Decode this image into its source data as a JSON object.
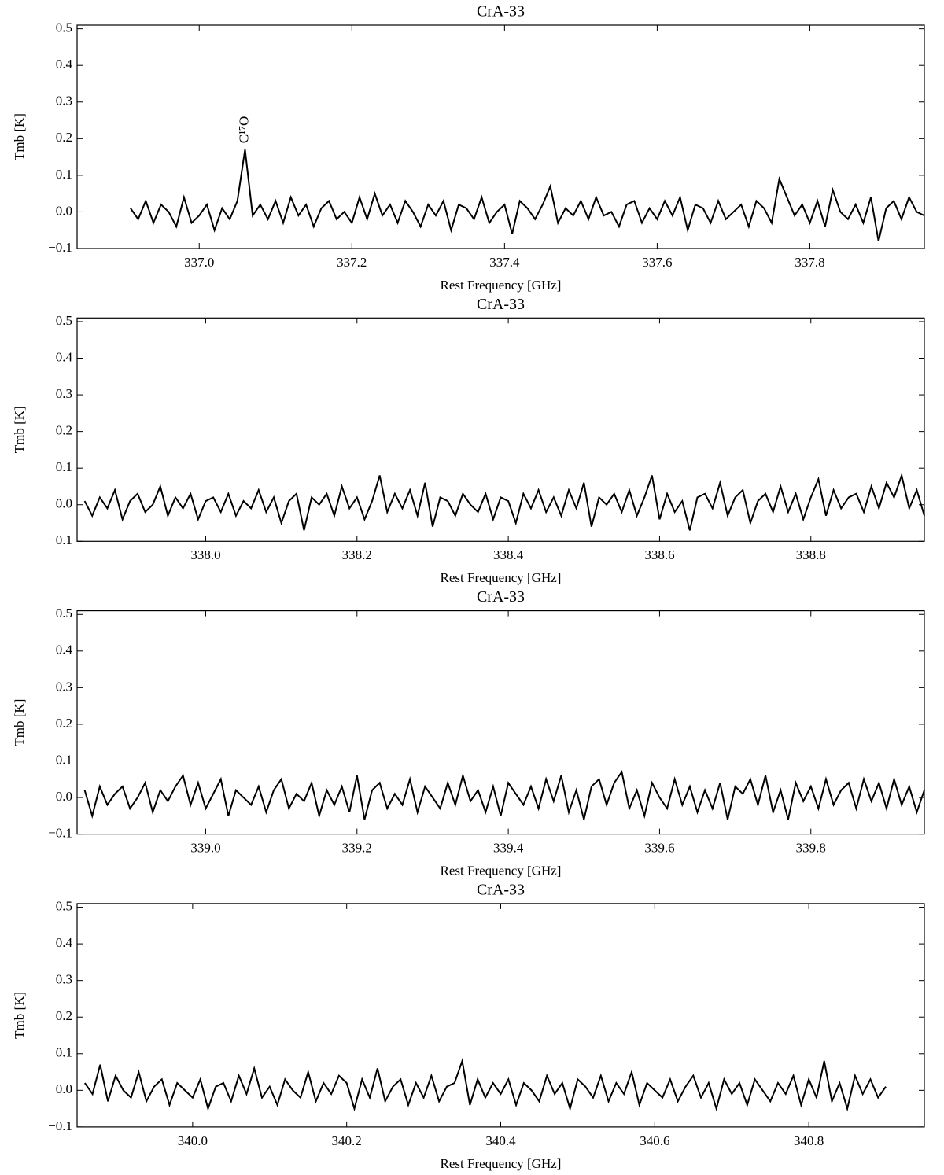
{
  "chart_data": [
    {
      "type": "line",
      "title": "CrA-33",
      "xlabel": "Rest Frequency [GHz]",
      "ylabel": "Tmb [K]",
      "annotations": [
        {
          "text": "C¹⁷O"
        }
      ],
      "xlim": [
        336.84,
        337.95
      ],
      "ylim": [
        -0.1,
        0.51
      ],
      "xticks": [
        {
          "value": 337,
          "label": "337.0"
        },
        337.2,
        337.4,
        337.6,
        337.8
      ],
      "yticks": [
        {
          "value": -0.1,
          "label": "−0.1"
        },
        {
          "value": 0,
          "label": "0.0"
        },
        0.1,
        0.2,
        0.3,
        0.4,
        0.5
      ],
      "x": [
        336.91,
        336.92,
        336.93,
        336.94,
        336.95,
        336.96,
        336.97,
        336.98,
        336.99,
        337.0,
        337.01,
        337.02,
        337.03,
        337.04,
        337.05,
        337.06,
        337.07,
        337.08,
        337.09,
        337.1,
        337.11,
        337.12,
        337.13,
        337.14,
        337.15,
        337.16,
        337.17,
        337.18,
        337.19,
        337.2,
        337.21,
        337.22,
        337.23,
        337.24,
        337.25,
        337.26,
        337.27,
        337.28,
        337.29,
        337.3,
        337.31,
        337.32,
        337.33,
        337.34,
        337.35,
        337.36,
        337.37,
        337.38,
        337.39,
        337.4,
        337.41,
        337.42,
        337.43,
        337.44,
        337.45,
        337.46,
        337.47,
        337.48,
        337.49,
        337.5,
        337.51,
        337.52,
        337.53,
        337.54,
        337.55,
        337.56,
        337.57,
        337.58,
        337.59,
        337.6,
        337.61,
        337.62,
        337.63,
        337.64,
        337.65,
        337.66,
        337.67,
        337.68,
        337.69,
        337.7,
        337.71,
        337.72,
        337.73,
        337.74,
        337.75,
        337.76,
        337.77,
        337.78,
        337.79,
        337.8,
        337.81,
        337.82,
        337.83,
        337.84,
        337.85,
        337.86,
        337.87,
        337.88,
        337.89,
        337.9,
        337.91,
        337.92,
        337.93,
        337.94,
        337.95
      ],
      "series": [
        {
          "color": "#000000",
          "values": [
            0.01,
            -0.02,
            0.03,
            -0.03,
            0.02,
            0.0,
            -0.04,
            0.04,
            -0.03,
            -0.01,
            0.02,
            -0.05,
            0.01,
            -0.02,
            0.03,
            0.17,
            -0.01,
            0.02,
            -0.02,
            0.03,
            -0.03,
            0.04,
            -0.01,
            0.02,
            -0.04,
            0.01,
            0.03,
            -0.02,
            0.0,
            -0.03,
            0.04,
            -0.02,
            0.05,
            -0.01,
            0.02,
            -0.03,
            0.03,
            0.0,
            -0.04,
            0.02,
            -0.01,
            0.03,
            -0.05,
            0.02,
            0.01,
            -0.02,
            0.04,
            -0.03,
            0.0,
            0.02,
            -0.06,
            0.03,
            0.01,
            -0.02,
            0.02,
            0.07,
            -0.03,
            0.01,
            -0.01,
            0.03,
            -0.02,
            0.04,
            -0.01,
            0.0,
            -0.04,
            0.02,
            0.03,
            -0.03,
            0.01,
            -0.02,
            0.03,
            -0.01,
            0.04,
            -0.05,
            0.02,
            0.01,
            -0.03,
            0.03,
            -0.02,
            0.0,
            0.02,
            -0.04,
            0.03,
            0.01,
            -0.03,
            0.09,
            0.04,
            -0.01,
            0.02,
            -0.03,
            0.03,
            -0.04,
            0.06,
            0.0,
            -0.02,
            0.02,
            -0.03,
            0.04,
            -0.08,
            0.01,
            0.03,
            -0.02,
            0.04,
            0.0,
            -0.01
          ]
        }
      ]
    },
    {
      "type": "line",
      "title": "CrA-33",
      "xlabel": "Rest Frequency [GHz]",
      "ylabel": "Tmb [K]",
      "xlim": [
        337.83,
        338.95
      ],
      "ylim": [
        -0.1,
        0.51
      ],
      "xticks": [
        {
          "value": 338,
          "label": "338.0"
        },
        338.2,
        338.4,
        338.6,
        338.8
      ],
      "yticks": [
        {
          "value": -0.1,
          "label": "−0.1"
        },
        {
          "value": 0,
          "label": "0.0"
        },
        0.1,
        0.2,
        0.3,
        0.4,
        0.5
      ],
      "x": [
        337.84,
        337.85,
        337.86,
        337.87,
        337.88,
        337.89,
        337.9,
        337.91,
        337.92,
        337.93,
        337.94,
        337.95,
        337.96,
        337.97,
        337.98,
        337.99,
        338.0,
        338.01,
        338.02,
        338.03,
        338.04,
        338.05,
        338.06,
        338.07,
        338.08,
        338.09,
        338.1,
        338.11,
        338.12,
        338.13,
        338.14,
        338.15,
        338.16,
        338.17,
        338.18,
        338.19,
        338.2,
        338.21,
        338.22,
        338.23,
        338.24,
        338.25,
        338.26,
        338.27,
        338.28,
        338.29,
        338.3,
        338.31,
        338.32,
        338.33,
        338.34,
        338.35,
        338.36,
        338.37,
        338.38,
        338.39,
        338.4,
        338.41,
        338.42,
        338.43,
        338.44,
        338.45,
        338.46,
        338.47,
        338.48,
        338.49,
        338.5,
        338.51,
        338.52,
        338.53,
        338.54,
        338.55,
        338.56,
        338.57,
        338.58,
        338.59,
        338.6,
        338.61,
        338.62,
        338.63,
        338.64,
        338.65,
        338.66,
        338.67,
        338.68,
        338.69,
        338.7,
        338.71,
        338.72,
        338.73,
        338.74,
        338.75,
        338.76,
        338.77,
        338.78,
        338.79,
        338.8,
        338.81,
        338.82,
        338.83,
        338.84,
        338.85,
        338.86,
        338.87,
        338.88,
        338.89,
        338.9,
        338.91,
        338.92,
        338.93,
        338.94,
        338.95
      ],
      "series": [
        {
          "color": "#000000",
          "values": [
            0.01,
            -0.03,
            0.02,
            -0.01,
            0.04,
            -0.04,
            0.01,
            0.03,
            -0.02,
            0.0,
            0.05,
            -0.03,
            0.02,
            -0.01,
            0.03,
            -0.04,
            0.01,
            0.02,
            -0.02,
            0.03,
            -0.03,
            0.01,
            -0.01,
            0.04,
            -0.02,
            0.02,
            -0.05,
            0.01,
            0.03,
            -0.07,
            0.02,
            0.0,
            0.03,
            -0.03,
            0.05,
            -0.01,
            0.02,
            -0.04,
            0.01,
            0.08,
            -0.02,
            0.03,
            -0.01,
            0.04,
            -0.03,
            0.06,
            -0.06,
            0.02,
            0.01,
            -0.03,
            0.03,
            0.0,
            -0.02,
            0.03,
            -0.04,
            0.02,
            0.01,
            -0.05,
            0.03,
            -0.01,
            0.04,
            -0.02,
            0.02,
            -0.03,
            0.04,
            -0.01,
            0.06,
            -0.06,
            0.02,
            0.0,
            0.03,
            -0.02,
            0.04,
            -0.03,
            0.02,
            0.08,
            -0.04,
            0.03,
            -0.02,
            0.01,
            -0.07,
            0.02,
            0.03,
            -0.01,
            0.06,
            -0.03,
            0.02,
            0.04,
            -0.05,
            0.01,
            0.03,
            -0.02,
            0.05,
            -0.02,
            0.03,
            -0.04,
            0.02,
            0.07,
            -0.03,
            0.04,
            -0.01,
            0.02,
            0.03,
            -0.02,
            0.05,
            -0.01,
            0.06,
            0.02,
            0.08,
            -0.01,
            0.04,
            -0.03
          ]
        }
      ]
    },
    {
      "type": "line",
      "title": "CrA-33",
      "xlabel": "Rest Frequency [GHz]",
      "ylabel": "Tmb [K]",
      "xlim": [
        338.83,
        339.95
      ],
      "ylim": [
        -0.1,
        0.51
      ],
      "xticks": [
        {
          "value": 339,
          "label": "339.0"
        },
        339.2,
        339.4,
        339.6,
        339.8
      ],
      "yticks": [
        {
          "value": -0.1,
          "label": "−0.1"
        },
        {
          "value": 0,
          "label": "0.0"
        },
        0.1,
        0.2,
        0.3,
        0.4,
        0.5
      ],
      "x": [
        338.84,
        338.85,
        338.86,
        338.87,
        338.88,
        338.89,
        338.9,
        338.91,
        338.92,
        338.93,
        338.94,
        338.95,
        338.96,
        338.97,
        338.98,
        338.99,
        339.0,
        339.01,
        339.02,
        339.03,
        339.04,
        339.05,
        339.06,
        339.07,
        339.08,
        339.09,
        339.1,
        339.11,
        339.12,
        339.13,
        339.14,
        339.15,
        339.16,
        339.17,
        339.18,
        339.19,
        339.2,
        339.21,
        339.22,
        339.23,
        339.24,
        339.25,
        339.26,
        339.27,
        339.28,
        339.29,
        339.3,
        339.31,
        339.32,
        339.33,
        339.34,
        339.35,
        339.36,
        339.37,
        339.38,
        339.39,
        339.4,
        339.41,
        339.42,
        339.43,
        339.44,
        339.45,
        339.46,
        339.47,
        339.48,
        339.49,
        339.5,
        339.51,
        339.52,
        339.53,
        339.54,
        339.55,
        339.56,
        339.57,
        339.58,
        339.59,
        339.6,
        339.61,
        339.62,
        339.63,
        339.64,
        339.65,
        339.66,
        339.67,
        339.68,
        339.69,
        339.7,
        339.71,
        339.72,
        339.73,
        339.74,
        339.75,
        339.76,
        339.77,
        339.78,
        339.79,
        339.8,
        339.81,
        339.82,
        339.83,
        339.84,
        339.85,
        339.86,
        339.87,
        339.88,
        339.89,
        339.9,
        339.91,
        339.92,
        339.93,
        339.94,
        339.95
      ],
      "series": [
        {
          "color": "#000000",
          "values": [
            0.02,
            -0.05,
            0.03,
            -0.02,
            0.01,
            0.03,
            -0.03,
            0.0,
            0.04,
            -0.04,
            0.02,
            -0.01,
            0.03,
            0.06,
            -0.02,
            0.04,
            -0.03,
            0.01,
            0.05,
            -0.05,
            0.02,
            0.0,
            -0.02,
            0.03,
            -0.04,
            0.02,
            0.05,
            -0.03,
            0.01,
            -0.01,
            0.04,
            -0.05,
            0.02,
            -0.02,
            0.03,
            -0.04,
            0.06,
            -0.06,
            0.02,
            0.04,
            -0.03,
            0.01,
            -0.02,
            0.05,
            -0.04,
            0.03,
            0.0,
            -0.03,
            0.04,
            -0.02,
            0.06,
            -0.01,
            0.02,
            -0.04,
            0.03,
            -0.05,
            0.04,
            0.01,
            -0.02,
            0.03,
            -0.03,
            0.05,
            -0.01,
            0.06,
            -0.04,
            0.02,
            -0.06,
            0.03,
            0.05,
            -0.02,
            0.04,
            0.07,
            -0.03,
            0.02,
            -0.05,
            0.04,
            0.0,
            -0.03,
            0.05,
            -0.02,
            0.03,
            -0.04,
            0.02,
            -0.03,
            0.04,
            -0.06,
            0.03,
            0.01,
            0.05,
            -0.02,
            0.06,
            -0.04,
            0.02,
            -0.06,
            0.04,
            -0.01,
            0.03,
            -0.03,
            0.05,
            -0.02,
            0.02,
            0.04,
            -0.03,
            0.05,
            -0.01,
            0.04,
            -0.03,
            0.05,
            -0.02,
            0.03,
            -0.04,
            0.02
          ]
        }
      ]
    },
    {
      "type": "line",
      "title": "CrA-33",
      "xlabel": "Rest Frequency [GHz]",
      "ylabel": "Tmb [K]",
      "xlim": [
        339.85,
        340.95
      ],
      "ylim": [
        -0.1,
        0.51
      ],
      "xticks": [
        {
          "value": 340,
          "label": "340.0"
        },
        340.2,
        340.4,
        340.6,
        340.8
      ],
      "yticks": [
        {
          "value": -0.1,
          "label": "−0.1"
        },
        {
          "value": 0,
          "label": "0.0"
        },
        0.1,
        0.2,
        0.3,
        0.4,
        0.5
      ],
      "x": [
        339.86,
        339.87,
        339.88,
        339.89,
        339.9,
        339.91,
        339.92,
        339.93,
        339.94,
        339.95,
        339.96,
        339.97,
        339.98,
        339.99,
        340.0,
        340.01,
        340.02,
        340.03,
        340.04,
        340.05,
        340.06,
        340.07,
        340.08,
        340.09,
        340.1,
        340.11,
        340.12,
        340.13,
        340.14,
        340.15,
        340.16,
        340.17,
        340.18,
        340.19,
        340.2,
        340.21,
        340.22,
        340.23,
        340.24,
        340.25,
        340.26,
        340.27,
        340.28,
        340.29,
        340.3,
        340.31,
        340.32,
        340.33,
        340.34,
        340.35,
        340.36,
        340.37,
        340.38,
        340.39,
        340.4,
        340.41,
        340.42,
        340.43,
        340.44,
        340.45,
        340.46,
        340.47,
        340.48,
        340.49,
        340.5,
        340.51,
        340.52,
        340.53,
        340.54,
        340.55,
        340.56,
        340.57,
        340.58,
        340.59,
        340.6,
        340.61,
        340.62,
        340.63,
        340.64,
        340.65,
        340.66,
        340.67,
        340.68,
        340.69,
        340.7,
        340.71,
        340.72,
        340.73,
        340.74,
        340.75,
        340.76,
        340.77,
        340.78,
        340.79,
        340.8,
        340.81,
        340.82,
        340.83,
        340.84,
        340.85,
        340.86,
        340.87,
        340.88,
        340.89,
        340.9
      ],
      "series": [
        {
          "color": "#000000",
          "values": [
            0.02,
            -0.01,
            0.07,
            -0.03,
            0.04,
            0.0,
            -0.02,
            0.05,
            -0.03,
            0.01,
            0.03,
            -0.04,
            0.02,
            0.0,
            -0.02,
            0.03,
            -0.05,
            0.01,
            0.02,
            -0.03,
            0.04,
            -0.01,
            0.06,
            -0.02,
            0.01,
            -0.04,
            0.03,
            0.0,
            -0.02,
            0.05,
            -0.03,
            0.02,
            -0.01,
            0.04,
            0.02,
            -0.05,
            0.03,
            -0.02,
            0.06,
            -0.03,
            0.01,
            0.03,
            -0.04,
            0.02,
            -0.02,
            0.04,
            -0.03,
            0.01,
            0.02,
            0.08,
            -0.04,
            0.03,
            -0.02,
            0.02,
            -0.01,
            0.03,
            -0.04,
            0.02,
            0.0,
            -0.03,
            0.04,
            -0.01,
            0.02,
            -0.05,
            0.03,
            0.01,
            -0.02,
            0.04,
            -0.03,
            0.02,
            -0.01,
            0.05,
            -0.04,
            0.02,
            0.0,
            -0.02,
            0.03,
            -0.03,
            0.01,
            0.04,
            -0.02,
            0.02,
            -0.05,
            0.03,
            -0.01,
            0.02,
            -0.04,
            0.03,
            0.0,
            -0.03,
            0.02,
            -0.01,
            0.04,
            -0.04,
            0.03,
            -0.02,
            0.08,
            -0.03,
            0.02,
            -0.05,
            0.04,
            -0.01,
            0.03,
            -0.02,
            0.01
          ]
        }
      ]
    }
  ]
}
